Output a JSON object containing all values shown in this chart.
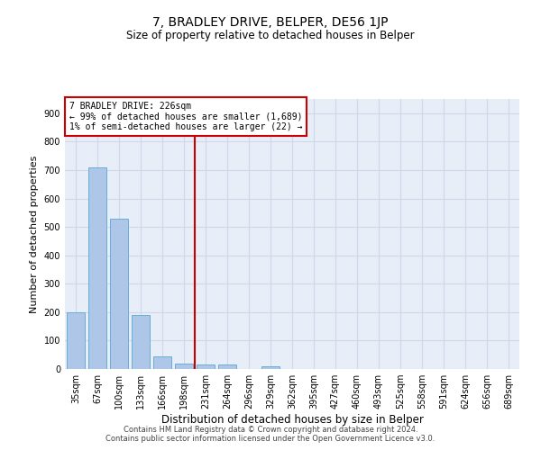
{
  "title": "7, BRADLEY DRIVE, BELPER, DE56 1JP",
  "subtitle": "Size of property relative to detached houses in Belper",
  "xlabel": "Distribution of detached houses by size in Belper",
  "ylabel": "Number of detached properties",
  "categories": [
    "35sqm",
    "67sqm",
    "100sqm",
    "133sqm",
    "166sqm",
    "198sqm",
    "231sqm",
    "264sqm",
    "296sqm",
    "329sqm",
    "362sqm",
    "395sqm",
    "427sqm",
    "460sqm",
    "493sqm",
    "525sqm",
    "558sqm",
    "591sqm",
    "624sqm",
    "656sqm",
    "689sqm"
  ],
  "values": [
    200,
    710,
    530,
    190,
    45,
    20,
    15,
    15,
    0,
    10,
    0,
    0,
    0,
    0,
    0,
    0,
    0,
    0,
    0,
    0,
    0
  ],
  "bar_color": "#aec6e8",
  "bar_edge_color": "#6aaed6",
  "property_line_x": 5.5,
  "annotation_line1": "7 BRADLEY DRIVE: 226sqm",
  "annotation_line2": "← 99% of detached houses are smaller (1,689)",
  "annotation_line3": "1% of semi-detached houses are larger (22) →",
  "annotation_box_color": "#ffffff",
  "annotation_box_edge_color": "#cc0000",
  "vline_color": "#cc0000",
  "grid_color": "#d0d8e8",
  "background_color": "#e8eef8",
  "ylim": [
    0,
    950
  ],
  "yticks": [
    0,
    100,
    200,
    300,
    400,
    500,
    600,
    700,
    800,
    900
  ],
  "title_fontsize": 10,
  "subtitle_fontsize": 8.5,
  "ylabel_fontsize": 8,
  "xlabel_fontsize": 8.5,
  "tick_fontsize": 7,
  "annotation_fontsize": 7,
  "footer_fontsize": 6,
  "footer1": "Contains HM Land Registry data © Crown copyright and database right 2024.",
  "footer2": "Contains public sector information licensed under the Open Government Licence v3.0."
}
